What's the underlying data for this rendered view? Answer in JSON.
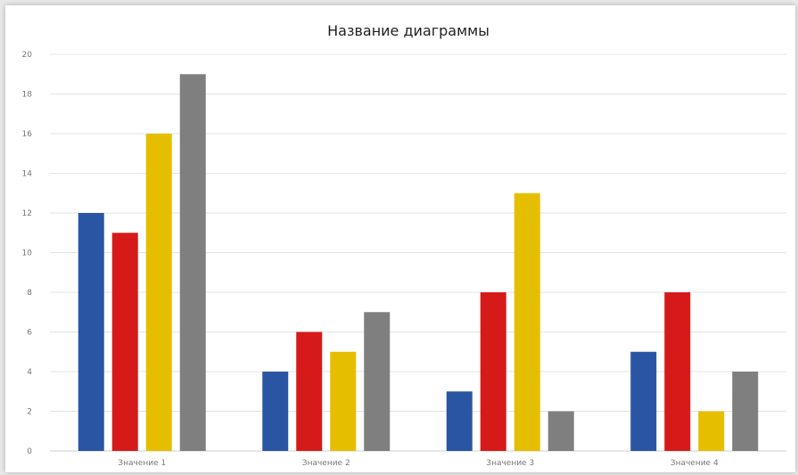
{
  "colors": {
    "background": "#ffffff",
    "grid": "#e3e3e3",
    "series": [
      "#2a55a3",
      "#d61a1a",
      "#e6be00",
      "#7f7f7f"
    ]
  },
  "chart_data": {
    "type": "bar",
    "title": "Название диаграммы",
    "categories": [
      "Значение 1",
      "Значение 2",
      "Значение 3",
      "Значение 4"
    ],
    "series": [
      {
        "values": [
          12,
          4,
          3,
          5
        ]
      },
      {
        "values": [
          11,
          6,
          8,
          8
        ]
      },
      {
        "values": [
          16,
          5,
          13,
          2
        ]
      },
      {
        "values": [
          19,
          7,
          2,
          4
        ]
      }
    ],
    "yticks": [
      "0",
      "2",
      "4",
      "6",
      "8",
      "10",
      "12",
      "14",
      "16",
      "18",
      "20"
    ],
    "ylim": [
      0,
      20
    ],
    "grid": true,
    "legend": "none"
  }
}
